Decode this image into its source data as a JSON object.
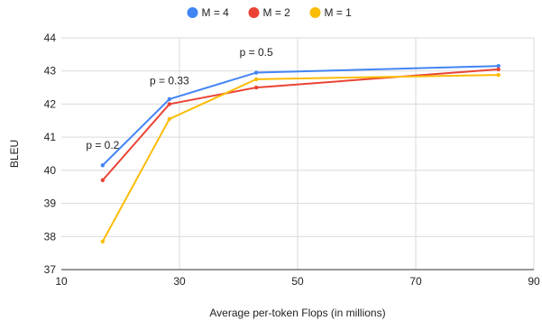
{
  "chart_data": {
    "type": "line",
    "xlabel": "Average per-token Flops (in millions)",
    "ylabel": "BLEU",
    "xlim": [
      10,
      90
    ],
    "ylim": [
      37,
      44
    ],
    "xticks": [
      10,
      30,
      50,
      70,
      90
    ],
    "yticks": [
      37,
      38,
      39,
      40,
      41,
      42,
      43,
      44
    ],
    "grid": true,
    "legend_position": "top",
    "series": [
      {
        "name": "M = 4",
        "color": "#4285f4",
        "x": [
          17,
          28.3,
          43,
          84
        ],
        "y": [
          40.15,
          42.15,
          42.95,
          43.15
        ]
      },
      {
        "name": "M = 2",
        "color": "#ea4335",
        "x": [
          17,
          28.3,
          43,
          84
        ],
        "y": [
          39.7,
          42.0,
          42.5,
          43.05
        ]
      },
      {
        "name": "M = 1",
        "color": "#fbbc04",
        "x": [
          17,
          28.3,
          43,
          84
        ],
        "y": [
          37.85,
          41.55,
          42.75,
          42.88
        ]
      }
    ],
    "annotations": [
      {
        "text": "p = 0.2",
        "x": 17,
        "y": 40.65
      },
      {
        "text": "p = 0.33",
        "x": 28.3,
        "y": 42.6
      },
      {
        "text": "p = 0.5",
        "x": 43,
        "y": 43.45
      }
    ]
  }
}
